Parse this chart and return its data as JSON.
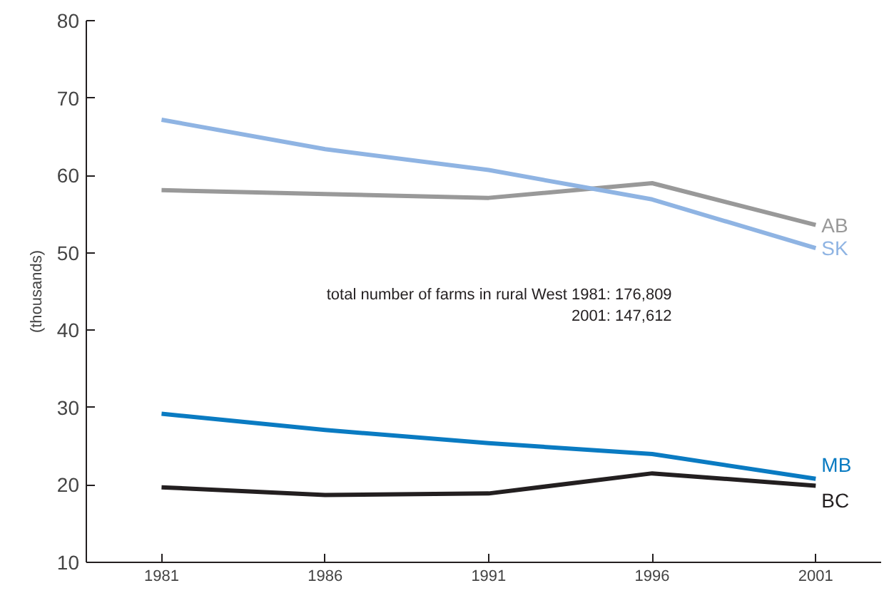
{
  "chart_data": {
    "type": "line",
    "ylabel": "(thousands)",
    "x": [
      1981,
      1986,
      1991,
      1996,
      2001
    ],
    "series": [
      {
        "name": "AB",
        "color": "#999999",
        "values": [
          58.1,
          57.6,
          57.1,
          59.0,
          53.6
        ]
      },
      {
        "name": "SK",
        "color": "#8fb4e3",
        "values": [
          67.2,
          63.4,
          60.7,
          56.9,
          50.6
        ]
      },
      {
        "name": "MB",
        "color": "#0a7bc2",
        "values": [
          29.2,
          27.1,
          25.4,
          24.0,
          20.8
        ]
      },
      {
        "name": "BC",
        "color": "#231f20",
        "values": [
          19.7,
          18.7,
          18.9,
          21.5,
          19.9
        ]
      }
    ],
    "xlim": [
      1978.7,
      2003
    ],
    "xticks": [
      1981,
      1986,
      1991,
      1996,
      2001
    ],
    "ylim": [
      10,
      80
    ],
    "yticks": [
      10,
      20,
      30,
      40,
      50,
      60,
      70,
      80
    ],
    "grid": false,
    "legend": false,
    "marker": "none",
    "line_style": "solid",
    "annotations": [
      "total number of farms in rural West 1981: 176,809",
      "2001: 147,612"
    ]
  }
}
